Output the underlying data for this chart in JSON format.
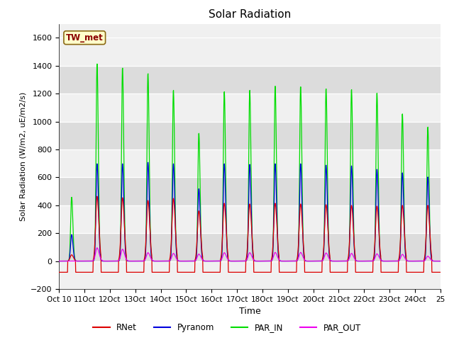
{
  "title": "Solar Radiation",
  "ylabel": "Solar Radiation (W/m2, uE/m2/s)",
  "xlabel": "Time",
  "ylim": [
    -200,
    1700
  ],
  "yticks": [
    -200,
    0,
    200,
    400,
    600,
    800,
    1000,
    1200,
    1400,
    1600
  ],
  "site_label": "TW_met",
  "colors": {
    "RNet": "#dd0000",
    "Pyranom": "#0000dd",
    "PAR_IN": "#00dd00",
    "PAR_OUT": "#ee00ee"
  },
  "bg_light": "#f0f0f0",
  "bg_dark": "#dcdcdc",
  "n_days": 15,
  "start_day": 10,
  "par_in_peaks": [
    460,
    1420,
    1390,
    1350,
    1230,
    920,
    1220,
    1230,
    1260,
    1255,
    1240,
    1235,
    1210,
    1060,
    965
  ],
  "pyranom_peaks": [
    190,
    700,
    700,
    710,
    700,
    520,
    700,
    695,
    700,
    700,
    690,
    685,
    660,
    635,
    605
  ],
  "rnet_peaks": [
    45,
    465,
    455,
    435,
    450,
    360,
    415,
    410,
    415,
    410,
    405,
    400,
    395,
    400,
    400
  ],
  "par_out_peaks": [
    0,
    95,
    85,
    60,
    55,
    50,
    60,
    60,
    62,
    62,
    58,
    55,
    52,
    48,
    35
  ],
  "rnet_night": -80,
  "pts_per_day": 96
}
